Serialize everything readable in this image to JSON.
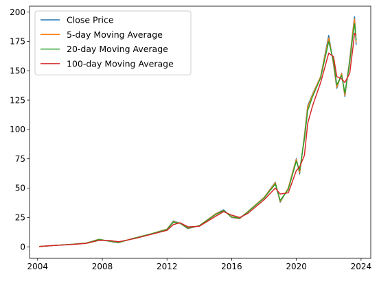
{
  "chart_data": {
    "type": "line",
    "title": "",
    "xlabel": "",
    "ylabel": "",
    "xlim": [
      2003.5,
      2024.6
    ],
    "ylim": [
      -9.8,
      205
    ],
    "grid": false,
    "legend_position": "top-left",
    "x_ticks": [
      2004,
      2008,
      2012,
      2016,
      2020,
      2024
    ],
    "x_tick_labels": [
      "2004",
      "2008",
      "2012",
      "2016",
      "2020",
      "2024"
    ],
    "y_ticks": [
      0,
      25,
      50,
      75,
      100,
      125,
      150,
      175,
      200
    ],
    "y_tick_labels": [
      "0",
      "25",
      "50",
      "75",
      "100",
      "125",
      "150",
      "175",
      "200"
    ],
    "series": [
      {
        "name": "Close Price",
        "color": "#1f77b4",
        "x": [
          2004.1,
          2005.0,
          2006.0,
          2007.0,
          2007.8,
          2008.5,
          2009.0,
          2010.0,
          2011.0,
          2012.0,
          2012.4,
          2012.8,
          2013.3,
          2014.0,
          2015.0,
          2015.5,
          2016.0,
          2016.5,
          2017.0,
          2018.0,
          2018.7,
          2019.0,
          2019.5,
          2020.0,
          2020.2,
          2020.5,
          2020.7,
          2021.0,
          2021.5,
          2022.0,
          2022.3,
          2022.5,
          2022.8,
          2023.0,
          2023.3,
          2023.5,
          2023.6,
          2023.7
        ],
        "values": [
          0.3,
          1.2,
          2.0,
          3.2,
          6.5,
          4.5,
          3.5,
          7.5,
          11.0,
          15.0,
          22.0,
          20.0,
          15.5,
          18.0,
          28.0,
          31.5,
          25.0,
          24.0,
          30.0,
          42.0,
          55.0,
          38.0,
          50.0,
          75.0,
          62.0,
          95.0,
          120.0,
          130.0,
          145.0,
          180.0,
          155.0,
          135.0,
          148.0,
          128.0,
          160.0,
          185.0,
          196.0,
          172.0
        ]
      },
      {
        "name": "5-day Moving Average",
        "color": "#ff7f0e",
        "x": [
          2004.1,
          2005.0,
          2006.0,
          2007.0,
          2007.8,
          2008.5,
          2009.0,
          2010.0,
          2011.0,
          2012.0,
          2012.4,
          2012.8,
          2013.3,
          2014.0,
          2015.0,
          2015.5,
          2016.0,
          2016.5,
          2017.0,
          2018.0,
          2018.7,
          2019.0,
          2019.5,
          2020.0,
          2020.2,
          2020.5,
          2020.7,
          2021.0,
          2021.5,
          2022.0,
          2022.3,
          2022.5,
          2022.8,
          2023.0,
          2023.3,
          2023.5,
          2023.6,
          2023.7
        ],
        "values": [
          0.3,
          1.2,
          2.0,
          3.2,
          6.4,
          4.6,
          3.6,
          7.5,
          11.0,
          15.0,
          21.5,
          20.0,
          15.7,
          18.0,
          28.0,
          31.0,
          25.2,
          24.2,
          30.0,
          42.0,
          54.5,
          38.5,
          50.0,
          74.5,
          63.0,
          94.0,
          119.0,
          129.5,
          145.0,
          178.0,
          156.0,
          136.0,
          147.5,
          129.0,
          159.0,
          184.0,
          194.0,
          174.0
        ]
      },
      {
        "name": "20-day Moving Average",
        "color": "#2ca02c",
        "x": [
          2004.1,
          2005.0,
          2006.0,
          2007.0,
          2007.8,
          2008.5,
          2009.0,
          2010.0,
          2011.0,
          2012.0,
          2012.4,
          2012.8,
          2013.3,
          2014.0,
          2015.0,
          2015.5,
          2016.0,
          2016.5,
          2017.0,
          2018.0,
          2018.7,
          2019.0,
          2019.5,
          2020.0,
          2020.2,
          2020.5,
          2020.7,
          2021.0,
          2021.5,
          2022.0,
          2022.3,
          2022.5,
          2022.8,
          2023.0,
          2023.3,
          2023.5,
          2023.6,
          2023.7
        ],
        "values": [
          0.3,
          1.2,
          2.0,
          3.1,
          6.2,
          4.8,
          3.8,
          7.4,
          10.9,
          14.8,
          21.0,
          20.2,
          16.0,
          18.0,
          27.5,
          30.8,
          25.5,
          24.5,
          29.8,
          41.5,
          53.5,
          39.5,
          49.0,
          73.0,
          65.0,
          92.0,
          116.0,
          128.0,
          144.0,
          175.0,
          158.0,
          138.0,
          146.0,
          131.0,
          157.0,
          181.0,
          190.0,
          176.0
        ]
      },
      {
        "name": "100-day Moving Average",
        "color": "#d62728",
        "x": [
          2004.1,
          2005.0,
          2006.0,
          2007.0,
          2007.8,
          2008.5,
          2009.0,
          2010.0,
          2011.0,
          2012.0,
          2012.4,
          2012.8,
          2013.3,
          2014.0,
          2015.0,
          2015.5,
          2016.0,
          2016.5,
          2017.0,
          2018.0,
          2018.7,
          2019.0,
          2019.5,
          2020.0,
          2020.2,
          2020.5,
          2020.7,
          2021.0,
          2021.5,
          2022.0,
          2022.3,
          2022.5,
          2022.8,
          2023.0,
          2023.3,
          2023.5,
          2023.6,
          2023.7
        ],
        "values": [
          0.3,
          1.1,
          1.9,
          2.9,
          5.5,
          5.3,
          4.3,
          7.0,
          10.5,
          14.0,
          19.0,
          20.5,
          17.0,
          17.5,
          26.0,
          30.0,
          27.0,
          25.0,
          28.5,
          40.0,
          50.0,
          45.0,
          46.0,
          65.0,
          68.0,
          78.0,
          105.0,
          120.0,
          140.0,
          165.0,
          162.0,
          145.0,
          143.0,
          140.0,
          148.0,
          170.0,
          182.0,
          180.0
        ]
      }
    ]
  }
}
